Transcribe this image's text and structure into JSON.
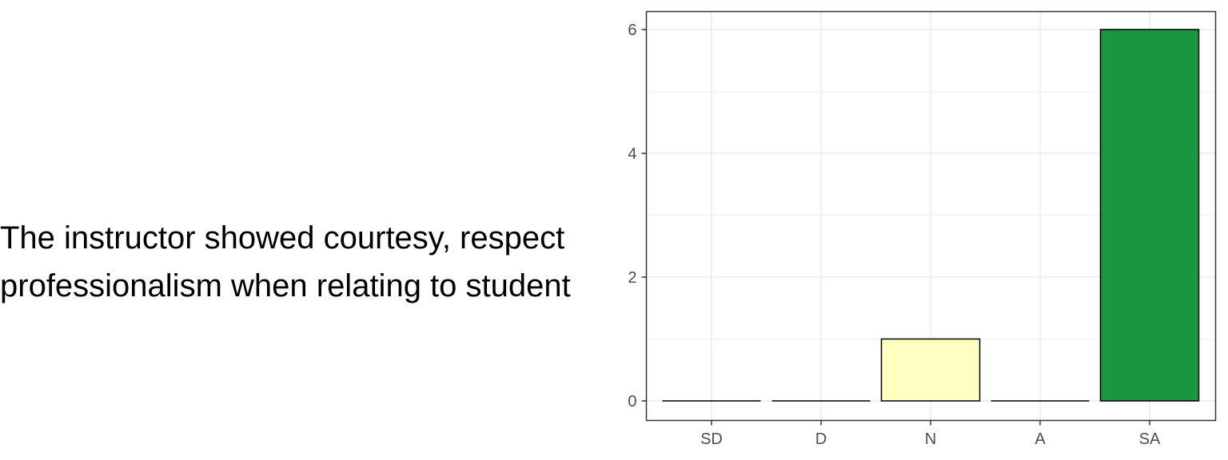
{
  "question": {
    "line1": "The instructor showed courtesy, respect",
    "line2": "professionalism when relating to student"
  },
  "chart_data": {
    "type": "bar",
    "categories": [
      "SD",
      "D",
      "N",
      "A",
      "SA"
    ],
    "values": [
      0,
      0,
      1,
      0,
      6
    ],
    "colors": [
      "#d7191c",
      "#fdae61",
      "#ffffbf",
      "#a6d96a",
      "#1a9641"
    ],
    "title": "",
    "xlabel": "",
    "ylabel": "",
    "ylim": [
      0,
      6
    ],
    "yticks": [
      0,
      2,
      4,
      6
    ],
    "grid": true,
    "legend": "none"
  }
}
